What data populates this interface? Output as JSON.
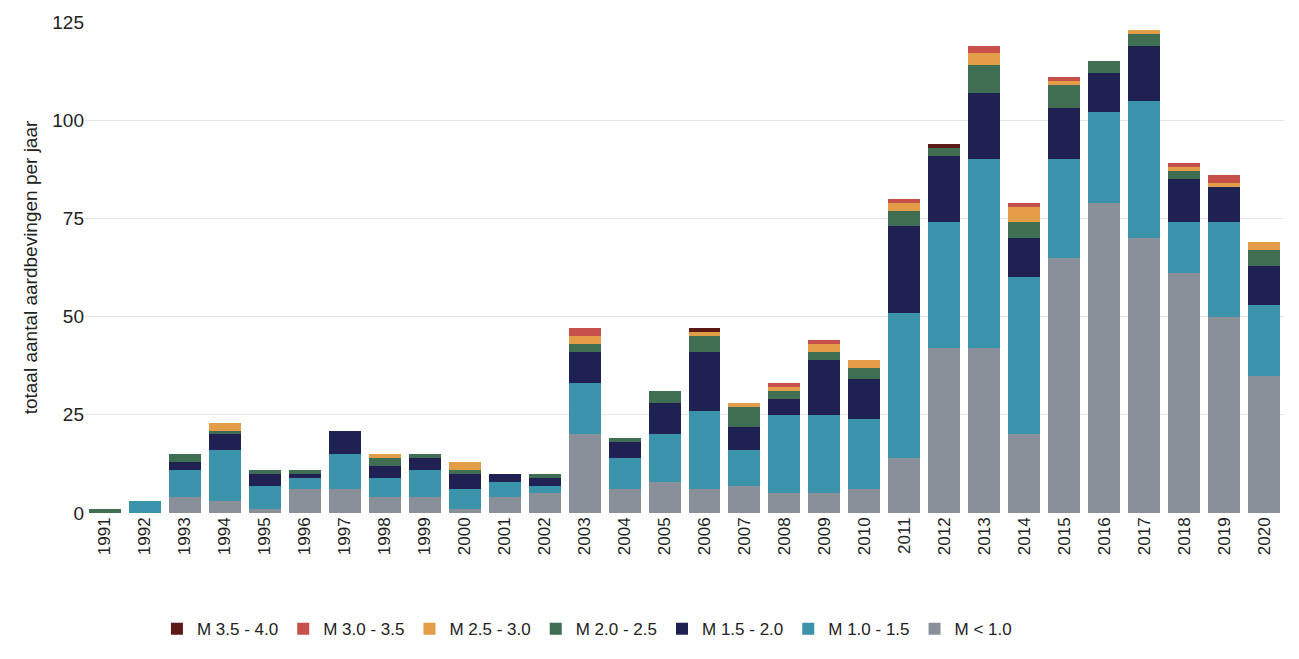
{
  "chart_data": {
    "type": "bar",
    "stacked": true,
    "grid": true,
    "legend": "bottom",
    "y_label": "totaal aantal aardbevingen per jaar",
    "categories": [
      "1991",
      "1992",
      "1993",
      "1994",
      "1995",
      "1996",
      "1997",
      "1998",
      "1999",
      "2000",
      "2001",
      "2002",
      "2003",
      "2004",
      "2005",
      "2006",
      "2007",
      "2008",
      "2009",
      "2010",
      "2011",
      "2012",
      "2013",
      "2014",
      "2015",
      "2016",
      "2017",
      "2018",
      "2019",
      "2020"
    ],
    "ylim": [
      0,
      125
    ],
    "yticks": [
      0,
      25,
      50,
      75,
      100,
      125
    ],
    "series": [
      {
        "name": "M < 1.0",
        "color": "#8a9099",
        "values": [
          0,
          0,
          4,
          3,
          1,
          6,
          6,
          4,
          4,
          1,
          4,
          5,
          20,
          6,
          8,
          6,
          7,
          5,
          5,
          6,
          14,
          42,
          42,
          20,
          65,
          79,
          70,
          61,
          50,
          35
        ]
      },
      {
        "name": "M 1.0 - 1.5",
        "color": "#3a93ab",
        "values": [
          0,
          3,
          7,
          13,
          6,
          3,
          9,
          5,
          7,
          5,
          4,
          2,
          13,
          8,
          12,
          20,
          9,
          20,
          20,
          18,
          37,
          32,
          48,
          40,
          25,
          23,
          35,
          13,
          24,
          18
        ]
      },
      {
        "name": "M 1.5 - 2.0",
        "color": "#1f2152",
        "values": [
          0,
          0,
          2,
          4,
          3,
          1,
          6,
          3,
          3,
          4,
          2,
          2,
          8,
          4,
          8,
          15,
          6,
          4,
          14,
          10,
          22,
          17,
          17,
          10,
          13,
          10,
          14,
          11,
          9,
          10
        ]
      },
      {
        "name": "M 2.0 - 2.5",
        "color": "#3f6e52",
        "values": [
          1,
          0,
          2,
          1,
          1,
          1,
          0,
          2,
          1,
          1,
          0,
          1,
          2,
          1,
          3,
          4,
          5,
          2,
          2,
          3,
          4,
          2,
          7,
          4,
          6,
          3,
          3,
          2,
          0,
          4
        ]
      },
      {
        "name": "M 2.5 - 3.0",
        "color": "#e39d48",
        "values": [
          0,
          0,
          0,
          2,
          0,
          0,
          0,
          1,
          0,
          2,
          0,
          0,
          2,
          0,
          0,
          1,
          1,
          1,
          2,
          2,
          2,
          0,
          3,
          4,
          1,
          0,
          1,
          1,
          1,
          2
        ]
      },
      {
        "name": "M 3.0 - 3.5",
        "color": "#c7514a",
        "values": [
          0,
          0,
          0,
          0,
          0,
          0,
          0,
          0,
          0,
          0,
          0,
          0,
          2,
          0,
          0,
          0,
          0,
          1,
          1,
          0,
          1,
          0,
          2,
          1,
          1,
          0,
          0,
          1,
          2,
          0
        ]
      },
      {
        "name": "M 3.5 - 4.0",
        "color": "#5c1a17",
        "values": [
          0,
          0,
          0,
          0,
          0,
          0,
          0,
          0,
          0,
          0,
          0,
          0,
          0,
          0,
          0,
          1,
          0,
          0,
          0,
          0,
          0,
          1,
          0,
          0,
          0,
          0,
          0,
          0,
          0,
          0
        ]
      }
    ]
  }
}
